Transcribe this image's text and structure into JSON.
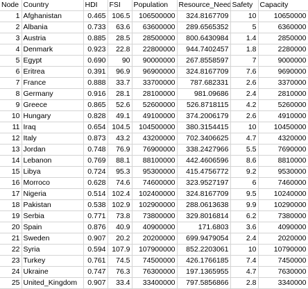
{
  "table": {
    "headers": [
      "Node",
      "Country",
      "HDI",
      "FSI",
      "Population",
      "Resource_Need",
      "Safety",
      "Capacity"
    ],
    "rows": [
      [
        "1",
        "Afghanistan",
        "0.465",
        "106.5",
        "106500000",
        "324.8167709",
        "10",
        "10650000"
      ],
      [
        "2",
        "Albania",
        "0.733",
        "63.6",
        "63600000",
        "289.6565352",
        "5",
        "6360000"
      ],
      [
        "3",
        "Austria",
        "0.885",
        "28.5",
        "28500000",
        "800.6430984",
        "1.4",
        "2850000"
      ],
      [
        "4",
        "Denmark",
        "0.923",
        "22.8",
        "22800000",
        "944.7402457",
        "1.8",
        "2280000"
      ],
      [
        "5",
        "Egypt",
        "0.690",
        "90",
        "90000000",
        "267.8558597",
        "7",
        "9000000"
      ],
      [
        "6",
        "Eritrea",
        "0.391",
        "96.9",
        "96900000",
        "324.8167709",
        "7.6",
        "9690000"
      ],
      [
        "7",
        "France",
        "0.888",
        "33.7",
        "33700000",
        "787.682331",
        "2.6",
        "3370000"
      ],
      [
        "8",
        "Germany",
        "0.916",
        "28.1",
        "28100000",
        "981.09686",
        "2.4",
        "2810000"
      ],
      [
        "9",
        "Greece",
        "0.865",
        "52.6",
        "52600000",
        "526.8718115",
        "4.2",
        "5260000"
      ],
      [
        "10",
        "Hungary",
        "0.828",
        "49.1",
        "49100000",
        "374.2006179",
        "2.6",
        "4910000"
      ],
      [
        "11",
        "Iraq",
        "0.654",
        "104.5",
        "104500000",
        "380.3154415",
        "10",
        "10450000"
      ],
      [
        "12",
        "Italy",
        "0.873",
        "43.2",
        "43200000",
        "702.3406625",
        "4.7",
        "4320000"
      ],
      [
        "13",
        "Jordan",
        "0.748",
        "76.9",
        "76900000",
        "338.2427966",
        "5.5",
        "7690000"
      ],
      [
        "14",
        "Lebanon",
        "0.769",
        "88.1",
        "88100000",
        "442.4606596",
        "8.6",
        "8810000"
      ],
      [
        "15",
        "Libya",
        "0.724",
        "95.3",
        "95300000",
        "415.4756772",
        "9.2",
        "9530000"
      ],
      [
        "16",
        "Morroco",
        "0.628",
        "74.6",
        "74600000",
        "323.9527197",
        "6",
        "7460000"
      ],
      [
        "17",
        "Nigeria",
        "0.514",
        "102.4",
        "102400000",
        "324.8167709",
        "9.5",
        "10240000"
      ],
      [
        "18",
        "Pakistan",
        "0.538",
        "102.9",
        "102900000",
        "288.0613638",
        "9.9",
        "10290000"
      ],
      [
        "19",
        "Serbia",
        "0.771",
        "73.8",
        "73800000",
        "329.8016814",
        "6.2",
        "7380000"
      ],
      [
        "20",
        "Spain",
        "0.876",
        "40.9",
        "40900000",
        "171.6803",
        "3.6",
        "4090000"
      ],
      [
        "21",
        "Sweden",
        "0.907",
        "20.2",
        "20200000",
        "699.9479054",
        "2.4",
        "2020000"
      ],
      [
        "22",
        "Syria",
        "0.594",
        "107.9",
        "107900000",
        "852.2203061",
        "10",
        "10790000"
      ],
      [
        "23",
        "Turkey",
        "0.761",
        "74.5",
        "74500000",
        "426.1766185",
        "7.4",
        "7450000"
      ],
      [
        "24",
        "Ukraine",
        "0.747",
        "76.3",
        "76300000",
        "197.1365955",
        "4.7",
        "7630000"
      ],
      [
        "25",
        "United_Kingdom",
        "0.907",
        "33.4",
        "33400000",
        "797.5856866",
        "2.8",
        "3340000"
      ]
    ]
  }
}
